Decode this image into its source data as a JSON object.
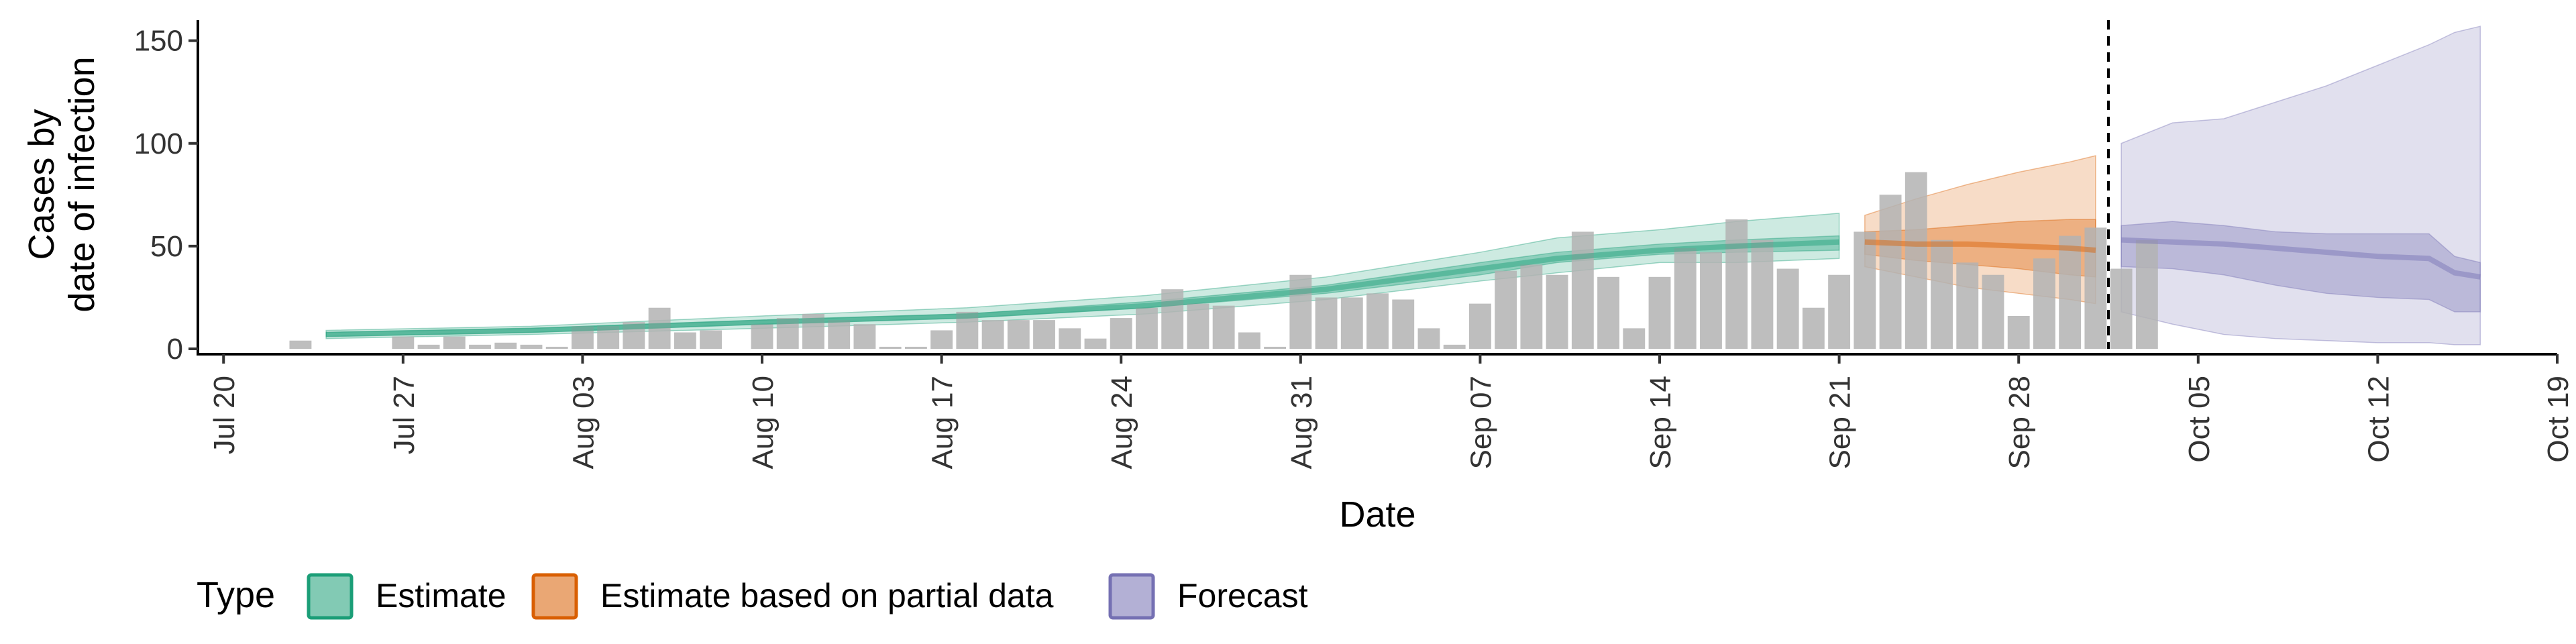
{
  "chart_data": {
    "type": "bar",
    "xlabel": "Date",
    "ylabel": [
      "Cases by",
      "date of infection"
    ],
    "ylim": [
      0,
      160
    ],
    "xlim": [
      "2020-07-19",
      "2020-10-19"
    ],
    "x_ticks": [
      "Jul 20",
      "Jul 27",
      "Aug 03",
      "Aug 10",
      "Aug 17",
      "Aug 24",
      "Aug 31",
      "Sep 07",
      "Sep 14",
      "Sep 21",
      "Sep 28",
      "Oct 05",
      "Oct 12",
      "Oct 19"
    ],
    "x_tick_dates": [
      "2020-07-20",
      "2020-07-27",
      "2020-08-03",
      "2020-08-10",
      "2020-08-17",
      "2020-08-24",
      "2020-08-31",
      "2020-09-07",
      "2020-09-14",
      "2020-09-21",
      "2020-09-28",
      "2020-10-05",
      "2020-10-12",
      "2020-10-19"
    ],
    "y_ticks": [
      0,
      50,
      100,
      150
    ],
    "grid": false,
    "cutoff_date": "2020-10-01",
    "legend": {
      "title": "Type",
      "position": "bottom",
      "items": [
        {
          "label": "Estimate",
          "fill": "#1b9e77",
          "border": "#1b9e77"
        },
        {
          "label": "Estimate based on partial data",
          "fill": "#d95f02",
          "border": "#d95f02"
        },
        {
          "label": "Forecast",
          "fill": "#7570b3",
          "border": "#7570b3"
        }
      ]
    },
    "bars": {
      "color": "#b3b3b3",
      "start_date": "2020-07-23",
      "values": [
        4,
        0,
        0,
        0,
        6,
        2,
        6,
        2,
        3,
        2,
        1,
        11,
        11,
        13,
        20,
        8,
        9,
        0,
        12,
        15,
        17,
        14,
        12,
        1,
        1,
        9,
        18,
        14,
        14,
        14,
        10,
        5,
        15,
        20,
        29,
        22,
        21,
        8,
        1,
        36,
        25,
        25,
        27,
        24,
        10,
        2,
        22,
        38,
        41,
        36,
        57,
        35,
        10,
        35,
        49,
        47,
        63,
        53,
        39,
        20,
        36,
        57,
        75,
        86,
        53,
        42,
        36,
        16,
        44,
        55,
        59,
        39,
        53
      ]
    },
    "series": [
      {
        "name": "Estimate",
        "color": "#1b9e77",
        "dates": [
          "2020-07-24",
          "2020-08-01",
          "2020-08-10",
          "2020-08-18",
          "2020-08-25",
          "2020-09-01",
          "2020-09-07",
          "2020-09-10",
          "2020-09-14",
          "2020-09-17",
          "2020-09-21"
        ],
        "median": [
          7,
          9,
          13,
          16,
          21,
          29,
          39,
          44,
          48,
          50,
          52
        ],
        "inner_lower": [
          6,
          8,
          12,
          15,
          20,
          27,
          36,
          42,
          46,
          47,
          48
        ],
        "inner_upper": [
          8,
          10,
          14,
          17,
          23,
          31,
          42,
          47,
          51,
          53,
          55
        ],
        "outer_lower": [
          5,
          7,
          10,
          13,
          17,
          24,
          33,
          37,
          42,
          42,
          44
        ],
        "outer_upper": [
          9,
          11,
          16,
          20,
          26,
          35,
          47,
          54,
          58,
          62,
          66
        ]
      },
      {
        "name": "Estimate based on partial data",
        "color": "#d95f02",
        "dates": [
          "2020-09-22",
          "2020-09-24",
          "2020-09-26",
          "2020-09-28",
          "2020-09-30",
          "2020-10-01"
        ],
        "median": [
          52,
          51,
          51,
          50,
          49,
          48
        ],
        "inner_lower": [
          46,
          43,
          41,
          39,
          36,
          35
        ],
        "inner_upper": [
          57,
          58,
          60,
          62,
          63,
          63
        ],
        "outer_lower": [
          40,
          35,
          30,
          27,
          24,
          22
        ],
        "outer_upper": [
          65,
          73,
          80,
          86,
          91,
          94
        ]
      },
      {
        "name": "Forecast",
        "color": "#7570b3",
        "dates": [
          "2020-10-02",
          "2020-10-04",
          "2020-10-06",
          "2020-10-08",
          "2020-10-10",
          "2020-10-12",
          "2020-10-14",
          "2020-10-15",
          "2020-10-16"
        ],
        "median": [
          53,
          52,
          51,
          49,
          47,
          45,
          44,
          37,
          35
        ],
        "inner_lower": [
          40,
          39,
          36,
          31,
          27,
          25,
          24,
          18,
          18
        ],
        "inner_upper": [
          60,
          62,
          60,
          57,
          56,
          56,
          56,
          45,
          42
        ],
        "outer_lower": [
          18,
          12,
          7,
          5,
          4,
          3,
          3,
          2,
          2
        ],
        "outer_upper": [
          100,
          110,
          112,
          120,
          128,
          138,
          148,
          154,
          157
        ]
      }
    ]
  }
}
